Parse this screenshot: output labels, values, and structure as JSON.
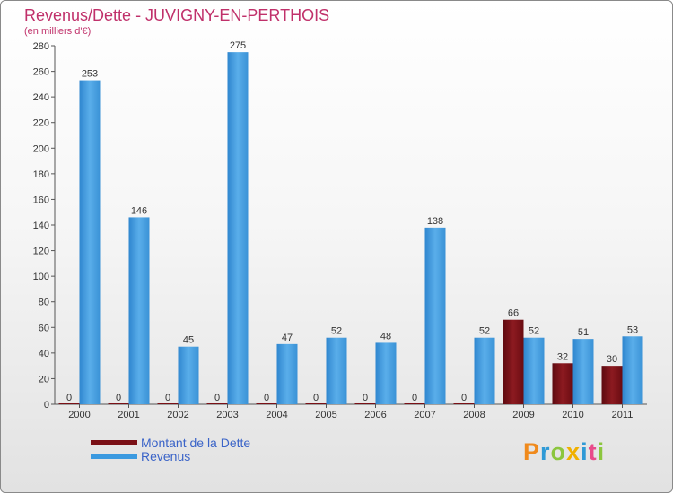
{
  "chart_data": {
    "type": "bar",
    "title": "Revenus/Dette - JUVIGNY-EN-PERTHOIS",
    "subtitle": "(en milliers d'€)",
    "xlabel": "",
    "ylabel": "",
    "ylim": [
      0,
      280
    ],
    "ytick_step": 20,
    "grid": false,
    "categories": [
      "2000",
      "2001",
      "2002",
      "2003",
      "2004",
      "2005",
      "2006",
      "2007",
      "2008",
      "2009",
      "2010",
      "2011"
    ],
    "series": [
      {
        "name": "Montant de la Dette",
        "color": "#7a1016",
        "values": [
          0,
          0,
          0,
          0,
          0,
          0,
          0,
          0,
          0,
          66,
          32,
          30
        ]
      },
      {
        "name": "Revenus",
        "color": "#3b9ae0",
        "values": [
          253,
          146,
          45,
          275,
          47,
          52,
          48,
          138,
          52,
          52,
          51,
          53
        ]
      }
    ],
    "legend": {
      "placement": "bottom-left"
    }
  },
  "logo": {
    "letters": [
      "P",
      "r",
      "o",
      "x",
      "i",
      "t",
      "i"
    ],
    "colors": [
      "#f08a1c",
      "#2f9ad6",
      "#8cc63e",
      "#f0b000",
      "#2f9ad6",
      "#e84a8a",
      "#8cc63e"
    ]
  }
}
